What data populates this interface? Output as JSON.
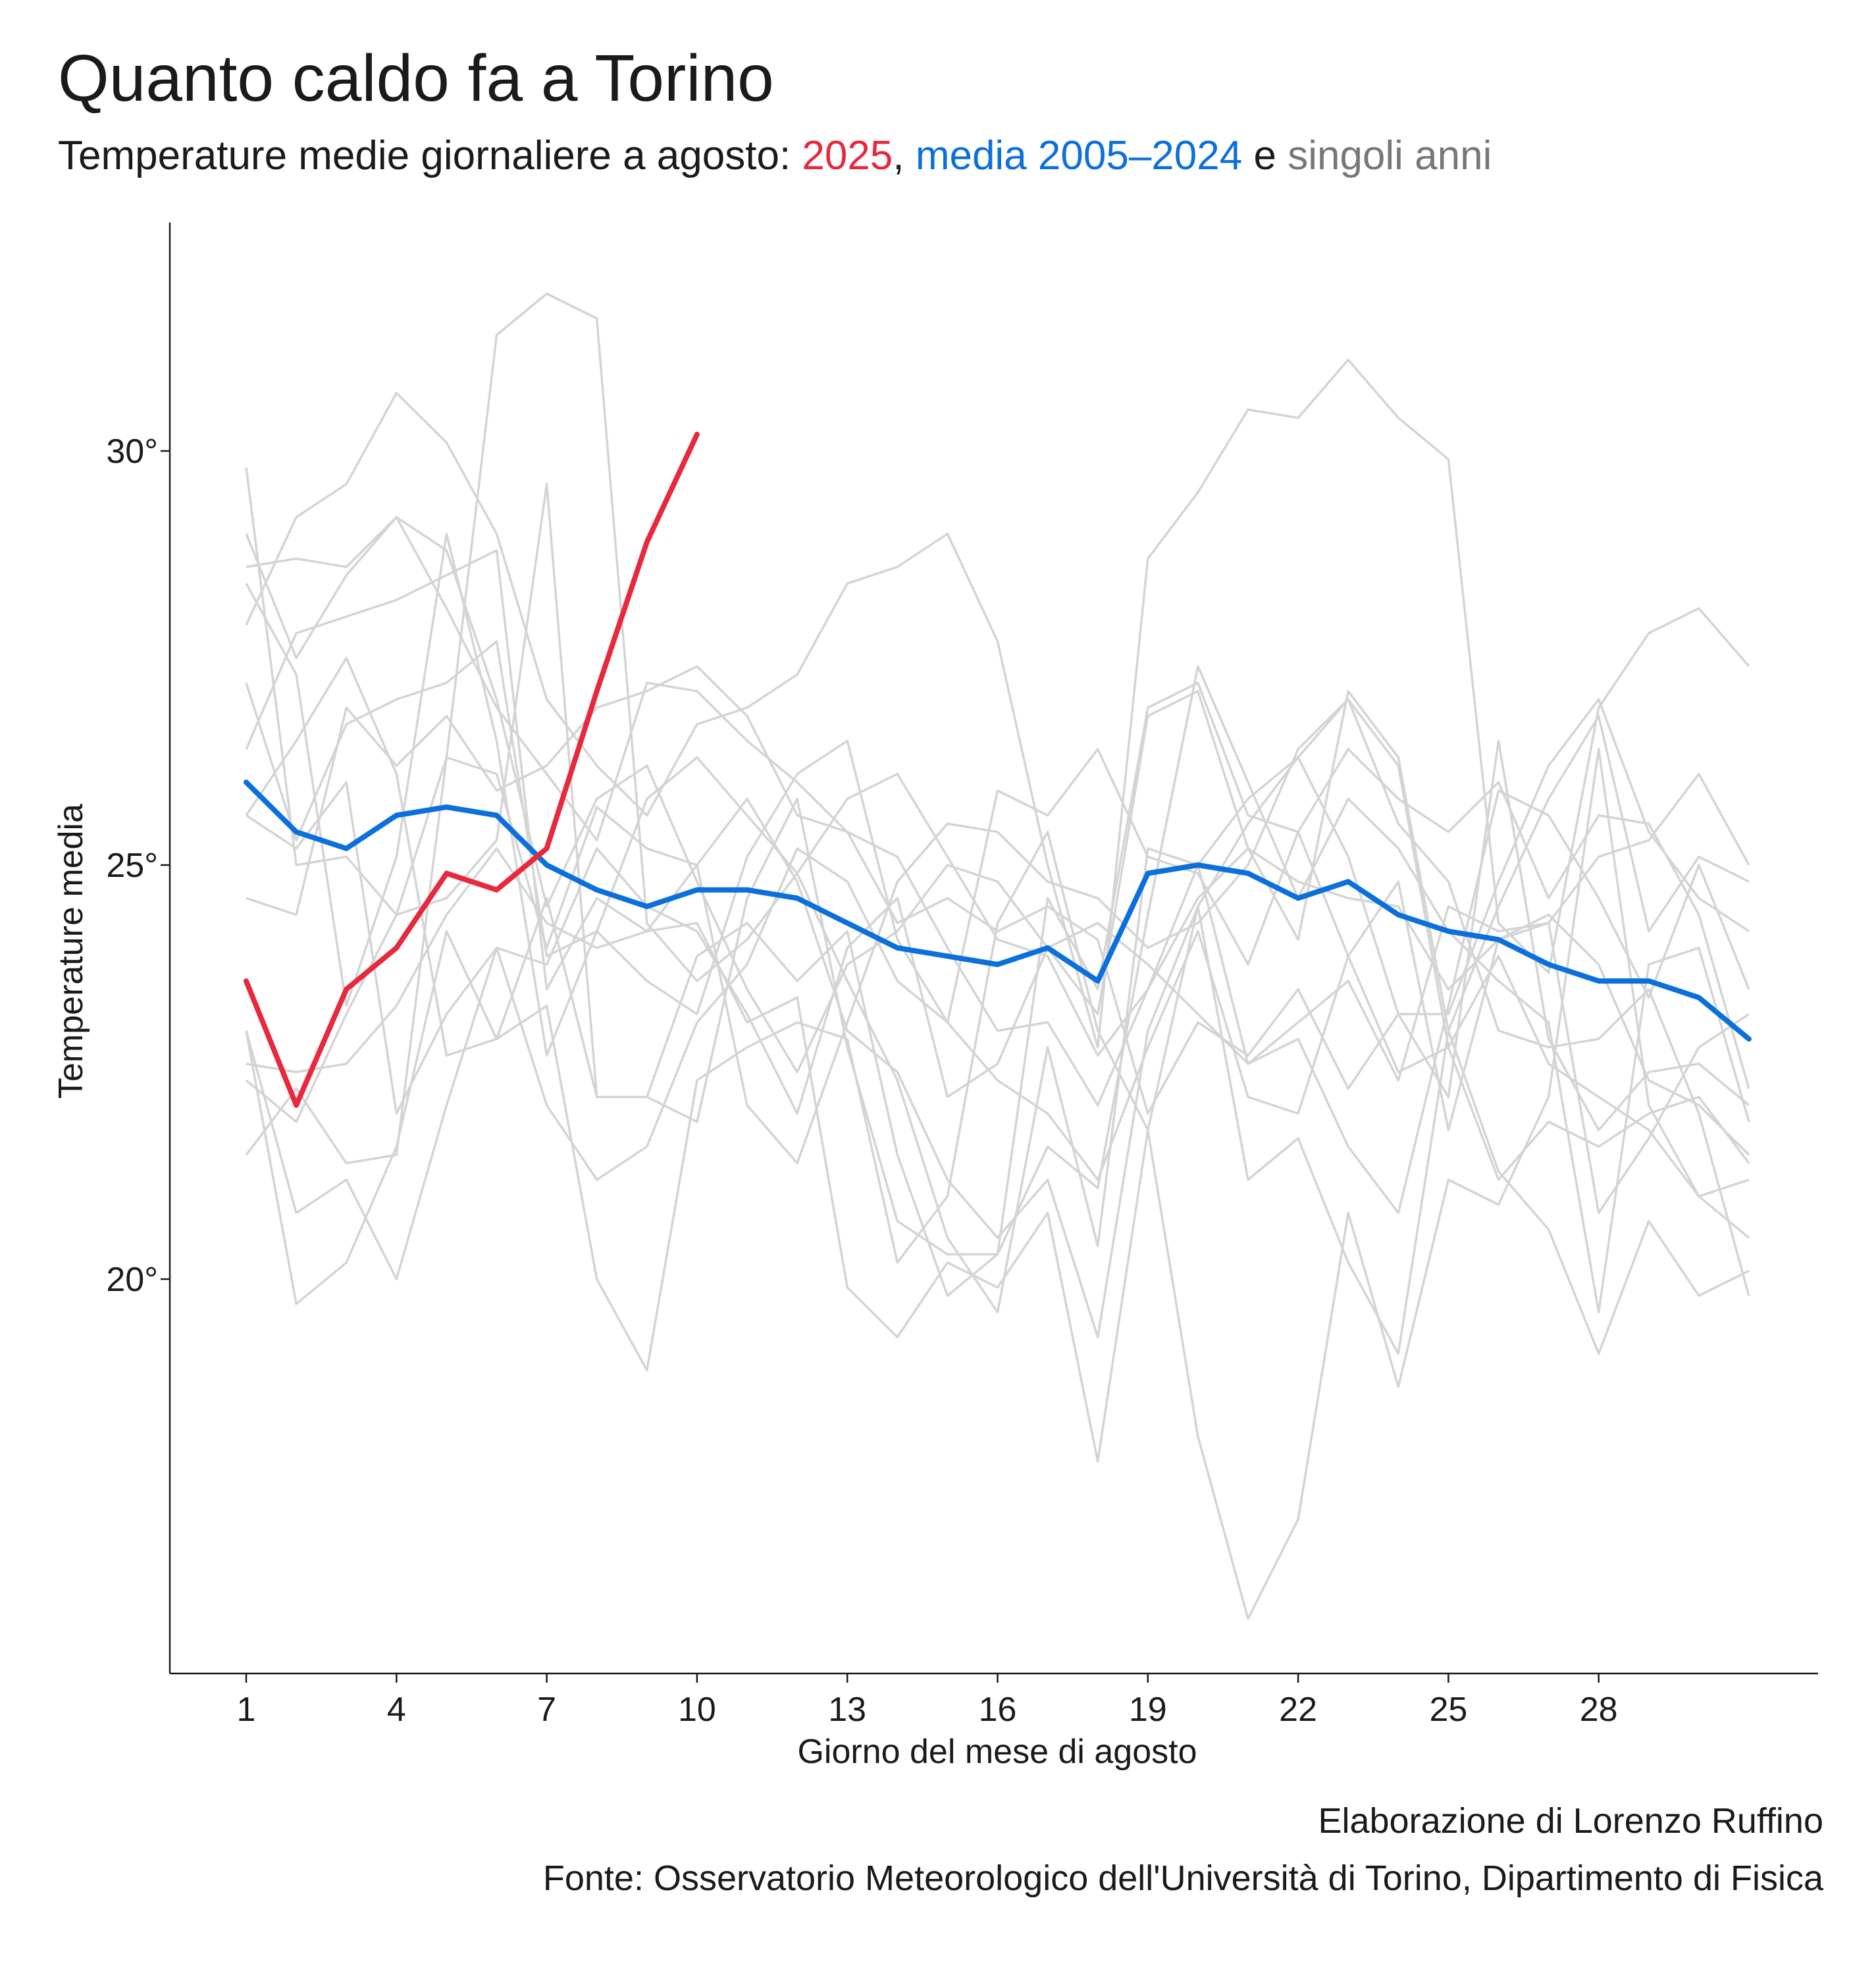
{
  "title": "Quanto caldo fa a Torino",
  "subtitle": {
    "prefix": "Temperature medie giornaliere a agosto: ",
    "highlight_2025": "2025",
    "sep1": ", ",
    "highlight_mean": "media 2005–2024",
    "sep2": " e ",
    "highlight_years": "singoli anni"
  },
  "caption": {
    "author": "Elaborazione di Lorenzo Ruffino",
    "source": "Fonte: Osservatorio Meteorologico dell'Università di Torino, Dipartimento di Fisica"
  },
  "colors": {
    "series_2025": "#e8283c",
    "series_mean": "#0b6fdc",
    "series_years": "#d4d4d4",
    "axis": "#1a1a1a"
  },
  "chart_data": {
    "type": "line",
    "title": "Quanto caldo fa a Torino",
    "xlabel": "Giorno del mese di agosto",
    "ylabel": "Temperature media",
    "xlim": [
      1,
      32
    ],
    "ylim": [
      15,
      32.5
    ],
    "x_ticks": [
      1,
      4,
      7,
      10,
      13,
      16,
      19,
      22,
      25,
      28
    ],
    "x_tick_labels": [
      "1",
      "4",
      "7",
      "10",
      "13",
      "16",
      "19",
      "22",
      "25",
      "28"
    ],
    "y_ticks": [
      20,
      25,
      30
    ],
    "y_tick_labels": [
      "20°",
      "25°",
      "30°"
    ],
    "grid": false,
    "legend": "none",
    "series_2025": {
      "x": [
        1,
        2,
        3,
        4,
        5,
        6,
        7,
        8,
        9,
        10
      ],
      "values": [
        23.6,
        22.1,
        23.5,
        24.0,
        24.9,
        24.7,
        25.2,
        27.1,
        28.9,
        30.2
      ]
    },
    "series_mean": {
      "x": [
        1,
        2,
        3,
        4,
        5,
        6,
        7,
        8,
        9,
        10,
        11,
        12,
        13,
        14,
        15,
        16,
        17,
        18,
        19,
        20,
        21,
        22,
        23,
        24,
        25,
        26,
        27,
        28,
        29,
        30,
        31
      ],
      "values": [
        26.0,
        25.4,
        25.2,
        25.6,
        25.7,
        25.6,
        25.0,
        24.7,
        24.5,
        24.7,
        24.7,
        24.6,
        24.3,
        24.0,
        23.9,
        23.8,
        24.0,
        23.6,
        24.9,
        25.0,
        24.9,
        24.6,
        24.8,
        24.4,
        24.2,
        24.1,
        23.8,
        23.6,
        23.6,
        23.4,
        22.9
      ]
    },
    "series_years": [
      {
        "values": [
          29.0,
          27.5,
          28.5,
          29.2,
          28.8,
          27.0,
          24.5,
          25.8,
          26.2,
          24.8,
          23.5,
          22.5,
          23.8,
          24.2,
          25.0,
          24.8,
          24.0,
          23.2,
          26.8,
          27.1,
          25.2,
          24.1,
          27.1,
          26.3,
          23.0,
          24.5,
          25.8,
          26.8,
          24.2,
          25.1,
          24.8
        ]
      },
      {
        "values": [
          26.4,
          27.8,
          28.0,
          28.2,
          28.5,
          28.8,
          23.5,
          24.6,
          24.2,
          25.0,
          25.8,
          24.8,
          23.0,
          22.5,
          21.2,
          20.5,
          21.2,
          19.3,
          23.0,
          24.5,
          25.5,
          26.3,
          27.0,
          25.5,
          24.8,
          23.0,
          22.8,
          22.9,
          23.5,
          22.0,
          19.8
        ]
      },
      {
        "values": [
          25.6,
          25.2,
          26.0,
          22.0,
          23.2,
          24.0,
          23.8,
          25.2,
          24.5,
          24.2,
          23.2,
          22.0,
          24.0,
          24.6,
          22.2,
          22.6,
          24.0,
          24.3,
          23.8,
          23.2,
          22.6,
          22.9,
          21.6,
          20.8,
          23.3,
          25.9,
          25.6,
          24.6,
          23.4,
          25.0,
          23.5
        ]
      },
      {
        "values": [
          22.4,
          21.9,
          23.2,
          24.4,
          26.3,
          26.1,
          24.0,
          25.7,
          25.2,
          25.0,
          22.1,
          21.4,
          23.1,
          24.8,
          25.5,
          25.4,
          24.8,
          24.6,
          24.0,
          24.3,
          25.0,
          26.4,
          27.0,
          26.2,
          22.8,
          21.2,
          21.9,
          21.6,
          22.0,
          22.2,
          21.4
        ]
      },
      {
        "values": [
          29.8,
          25.0,
          25.1,
          24.4,
          24.6,
          25.3,
          29.6,
          22.2,
          22.2,
          21.9,
          24.6,
          25.8,
          22.8,
          20.7,
          20.3,
          20.3,
          24.6,
          23.5,
          26.9,
          27.2,
          25.6,
          25.4,
          23.9,
          24.8,
          21.8,
          24.1,
          24.3,
          20.8,
          21.7,
          22.8,
          23.2
        ]
      },
      {
        "values": [
          27.2,
          25.3,
          26.7,
          27.0,
          27.2,
          27.7,
          23.9,
          24.2,
          23.6,
          23.2,
          25.1,
          26.1,
          26.5,
          24.1,
          23.1,
          25.9,
          25.6,
          26.4,
          25.1,
          24.9,
          23.8,
          25.4,
          26.4,
          25.8,
          25.4,
          26.0,
          24.6,
          25.6,
          25.5,
          24.4,
          22.3
        ]
      },
      {
        "values": [
          24.6,
          24.4,
          26.9,
          26.2,
          26.8,
          25.9,
          26.2,
          26.9,
          27.1,
          27.4,
          26.8,
          25.6,
          25.4,
          25.1,
          24.0,
          23.0,
          23.1,
          22.1,
          23.5,
          25.0,
          22.6,
          23.1,
          23.6,
          22.4,
          24.5,
          24.2,
          24.3,
          25.1,
          25.3,
          26.1,
          25.0
        ]
      },
      {
        "values": [
          27.9,
          29.2,
          29.6,
          30.7,
          30.1,
          29.0,
          27.0,
          26.2,
          25.6,
          26.7,
          26.9,
          27.3,
          28.4,
          28.6,
          29.0,
          27.7,
          25.0,
          22.8,
          28.7,
          29.5,
          30.5,
          30.4,
          31.1,
          30.4,
          29.9,
          24.3,
          23.7,
          26.9,
          27.8,
          28.1,
          27.4
        ]
      },
      {
        "values": [
          21.5,
          22.3,
          21.4,
          21.5,
          26.3,
          31.4,
          31.9,
          31.6,
          24.3,
          23.6,
          24.1,
          24.9,
          25.8,
          26.1,
          25.1,
          24.1,
          23.9,
          22.7,
          23.5,
          24.6,
          25.2,
          24.8,
          24.6,
          24.5,
          23.5,
          24.1,
          24.4,
          23.8,
          22.4,
          22.1,
          21.5
        ]
      },
      {
        "values": [
          23.0,
          19.7,
          20.2,
          21.6,
          24.2,
          22.9,
          23.3,
          20.0,
          18.9,
          22.4,
          22.8,
          23.1,
          22.9,
          20.2,
          21.0,
          24.3,
          25.4,
          23.0,
          21.8,
          18.1,
          15.9,
          17.1,
          20.8,
          18.7,
          21.2,
          20.9,
          22.2,
          26.4,
          22.1,
          21.0,
          20.5
        ]
      },
      {
        "values": [
          23.0,
          20.8,
          21.2,
          20.0,
          22.1,
          24.0,
          22.1,
          21.2,
          21.6,
          23.1,
          23.8,
          25.2,
          24.8,
          23.6,
          23.1,
          22.4,
          22.0,
          21.2,
          22.8,
          24.2,
          22.2,
          22.0,
          23.9,
          22.5,
          22.8,
          23.9,
          22.6,
          22.2,
          21.8,
          21.0,
          21.2
        ]
      },
      {
        "values": [
          22.6,
          22.5,
          22.6,
          23.3,
          24.4,
          25.2,
          24.3,
          24.0,
          24.2,
          24.3,
          23.1,
          23.4,
          19.9,
          19.3,
          20.2,
          19.9,
          20.8,
          17.8,
          21.8,
          24.5,
          21.2,
          21.7,
          20.2,
          19.1,
          23.0,
          21.3,
          20.6,
          19.1,
          20.7,
          19.8,
          20.1
        ]
      },
      {
        "values": [
          28.6,
          28.7,
          28.6,
          29.2,
          28.1,
          26.9,
          26.1,
          25.3,
          27.2,
          27.1,
          26.5,
          26.0,
          25.4,
          24.3,
          24.6,
          24.2,
          24.5,
          24.1,
          22.0,
          23.1,
          22.7,
          23.5,
          22.3,
          23.2,
          23.2,
          24.8,
          26.2,
          27.0,
          25.4,
          24.6,
          24.2
        ]
      },
      {
        "values": [
          25.6,
          26.5,
          27.5,
          26.1,
          22.7,
          22.9,
          24.6,
          22.2,
          22.2,
          23.9,
          24.3,
          23.6,
          24.2,
          21.5,
          19.8,
          20.3,
          21.6,
          21.1,
          24.4,
          27.4,
          26.0,
          24.6,
          25.8,
          25.2,
          24.2,
          23.6,
          23.1,
          19.6,
          23.8,
          24.0,
          21.9
        ]
      },
      {
        "values": [
          28.4,
          27.3,
          23.3,
          25.1,
          29.0,
          26.5,
          22.7,
          24.2,
          25.8,
          26.3,
          25.6,
          24.9,
          23.6,
          22.4,
          20.5,
          19.6,
          22.8,
          20.4,
          25.2,
          25.0,
          25.8,
          26.3,
          25.1,
          23.2,
          22.2,
          26.5,
          22.9,
          21.8,
          22.5,
          22.6,
          22.1
        ]
      }
    ]
  }
}
